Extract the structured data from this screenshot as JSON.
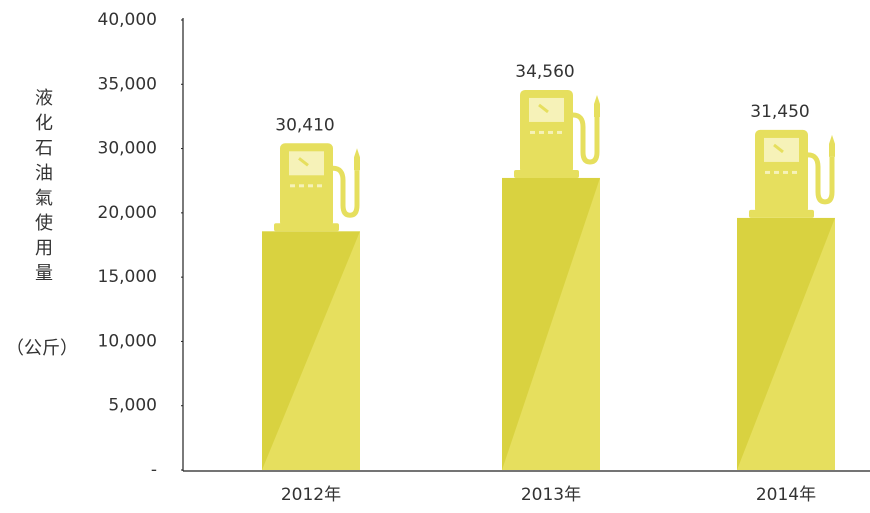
{
  "chart_data": {
    "type": "bar",
    "ylabel": "液化石油氣使用量",
    "ylabel_unit": "（公斤）",
    "categories": [
      "2012年",
      "2013年",
      "2014年"
    ],
    "values": [
      30410,
      34560,
      31450
    ],
    "value_labels": [
      "30,410",
      "34,560",
      "31,450"
    ],
    "color": "#d9d240",
    "ylim": [
      0,
      40000
    ],
    "yticks": [
      {
        "value": 0,
        "label": "-"
      },
      {
        "value": 5000,
        "label": "5,000"
      },
      {
        "value": 10000,
        "label": "10,000"
      },
      {
        "value": 15000,
        "label": "15,000"
      },
      {
        "value": 20000,
        "label": "20,000"
      },
      {
        "value": 30000,
        "label": "30,000"
      },
      {
        "value": 35000,
        "label": "35,000"
      },
      {
        "value": 40000,
        "label": "40,000"
      }
    ],
    "grid": false
  }
}
